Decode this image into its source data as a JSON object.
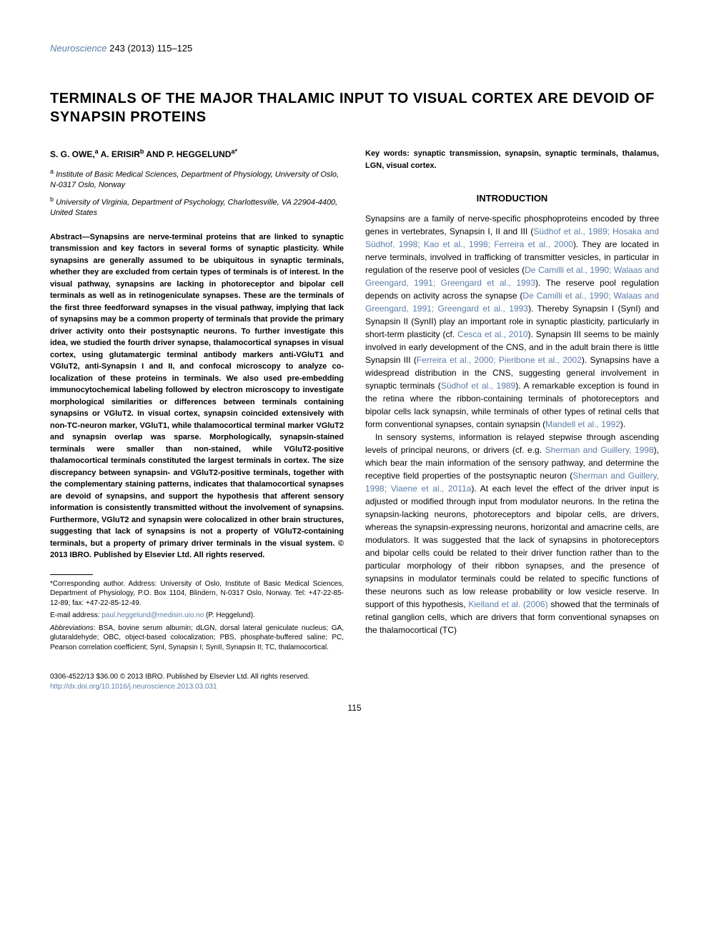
{
  "journal": {
    "name": "Neuroscience",
    "reference": "243 (2013) 115–125"
  },
  "title": "TERMINALS OF THE MAJOR THALAMIC INPUT TO VISUAL CORTEX ARE DEVOID OF SYNAPSIN PROTEINS",
  "authors": "S. G. OWE,",
  "author_a_sup": "a",
  "author2": " A. ERISIR",
  "author_b_sup": "b",
  "author_and": " AND P. HEGGELUND",
  "author_corr_sup": "a*",
  "affiliations": {
    "a_sup": "a",
    "a": " Institute of Basic Medical Sciences, Department of Physiology, University of Oslo, N-0317 Oslo, Norway",
    "b_sup": "b",
    "b": " University of Virginia, Department of Psychology, Charlottesville, VA 22904-4400, United States"
  },
  "abstract": "Abstract—Synapsins are nerve-terminal proteins that are linked to synaptic transmission and key factors in several forms of synaptic plasticity. While synapsins are generally assumed to be ubiquitous in synaptic terminals, whether they are excluded from certain types of terminals is of interest. In the visual pathway, synapsins are lacking in photoreceptor and bipolar cell terminals as well as in retinogeniculate synapses. These are the terminals of the first three feedforward synapses in the visual pathway, implying that lack of synapsins may be a common property of terminals that provide the primary driver activity onto their postsynaptic neurons. To further investigate this idea, we studied the fourth driver synapse, thalamocortical synapses in visual cortex, using glutamatergic terminal antibody markers anti-VGluT1 and VGluT2, anti-Synapsin I and II, and confocal microscopy to analyze co-localization of these proteins in terminals. We also used pre-embedding immunocytochemical labeling followed by electron microscopy to investigate morphological similarities or differences between terminals containing synapsins or VGluT2. In visual cortex, synapsin coincided extensively with non-TC-neuron marker, VGluT1, while thalamocortical terminal marker VGluT2 and synapsin overlap was sparse. Morphologically, synapsin-stained terminals were smaller than non-stained, while VGluT2-positive thalamocortical terminals constituted the largest terminals in cortex. The size discrepancy between synapsin- and VGluT2-positive terminals, together with the complementary staining patterns, indicates that thalamocortical synapses are devoid of synapsins, and support the hypothesis that afferent sensory information is consistently transmitted without the involvement of synapsins. Furthermore, VGluT2 and synapsin were colocalized in other brain structures, suggesting that lack of synapsins is not a property of VGluT2-containing terminals, but a property of primary driver terminals in the visual system. © 2013 IBRO. Published by Elsevier Ltd. All rights reserved.",
  "footnotes": {
    "corresponding": "*Corresponding author. Address: University of Oslo, Institute of Basic Medical Sciences, Department of Physiology, P.O. Box 1104, Blindern, N-0317 Oslo, Norway. Tel: +47-22-85-12-89; fax: +47-22-85-12-49.",
    "email_label": "E-mail address: ",
    "email": "paul.heggelund@medisin.uio.no",
    "email_suffix": " (P. Heggelund).",
    "abbrev_label": "Abbreviations:",
    "abbreviations": " BSA, bovine serum albumin; dLGN, dorsal lateral geniculate nucleus; GA, glutaraldehyde; OBC, object-based colocalization; PBS, phosphate-buffered saline; PC, Pearson correlation coefficient; SynI, Synapsin I; SynII, Synapsin II; TC, thalamocortical."
  },
  "keywords": "Key words: synaptic transmission, synapsin, synaptic terminals, thalamus, LGN, visual cortex.",
  "section_heading": "INTRODUCTION",
  "intro": {
    "p1_a": "Synapsins are a family of nerve-specific phosphoproteins encoded by three genes in vertebrates, Synapsin I, II and III (",
    "p1_c1": "Südhof et al., 1989; Hosaka and Südhof, 1998; Kao et al., 1998; Ferreira et al., 2000",
    "p1_b": "). They are located in nerve terminals, involved in trafficking of transmitter vesicles, in particular in regulation of the reserve pool of vesicles (",
    "p1_c2": "De Camilli et al., 1990; Walaas and Greengard, 1991; Greengard et al., 1993",
    "p1_c": "). The reserve pool regulation depends on activity across the synapse (",
    "p1_c3": "De Camilli et al., 1990; Walaas and Greengard, 1991; Greengard et al., 1993",
    "p1_d": "). Thereby Synapsin I (SynI) and Synapsin II (SynII) play an important role in synaptic plasticity, particularly in short-term plasticity (cf. ",
    "p1_c4": "Cesca et al., 2010",
    "p1_e": "). Synapsin III seems to be mainly involved in early development of the CNS, and in the adult brain there is little Synapsin III (",
    "p1_c5": "Ferreira et al., 2000; Pieribone et al., 2002",
    "p1_f": "). Synapsins have a widespread distribution in the CNS, suggesting general involvement in synaptic terminals (",
    "p1_c6": "Südhof et al., 1989",
    "p1_g": "). A remarkable exception is found in the retina where the ribbon-containing terminals of photoreceptors and bipolar cells lack synapsin, while terminals of other types of retinal cells that form conventional synapses, contain synapsin (",
    "p1_c7": "Mandell et al., 1992",
    "p1_h": ").",
    "p2_a": "In sensory systems, information is relayed stepwise through ascending levels of principal neurons, or drivers (cf. e.g. ",
    "p2_c1": "Sherman and Guillery, 1998",
    "p2_b": "), which bear the main information of the sensory pathway, and determine the receptive field properties of the postsynaptic neuron (",
    "p2_c2": "Sherman and Guillery, 1998; Viaene et al., 2011a",
    "p2_c": "). At each level the effect of the driver input is adjusted or modified through input from modulator neurons. In the retina the synapsin-lacking neurons, photoreceptors and bipolar cells, are drivers, whereas the synapsin-expressing neurons, horizontal and amacrine cells, are modulators. It was suggested that the lack of synapsins in photoreceptors and bipolar cells could be related to their driver function rather than to the particular morphology of their ribbon synapses, and the presence of synapsins in modulator terminals could be related to specific functions of these neurons such as low release probability or low vesicle reserve. In support of this hypothesis, ",
    "p2_c3": "Kielland et al. (2006)",
    "p2_d": " showed that the terminals of retinal ganglion cells, which are drivers that form conventional synapses on the thalamocortical (TC)"
  },
  "bottom": {
    "copyright": "0306-4522/13 $36.00 © 2013 IBRO. Published by Elsevier Ltd. All rights reserved.",
    "doi": "http://dx.doi.org/10.1016/j.neuroscience.2013.03.031"
  },
  "page_number": "115",
  "colors": {
    "link": "#5b7ca8",
    "text": "#000000",
    "background": "#ffffff"
  },
  "typography": {
    "title_fontsize": 20,
    "body_fontsize": 12,
    "abstract_fontsize": 11,
    "footnote_fontsize": 10,
    "font_family": "Arial, Helvetica, sans-serif"
  }
}
